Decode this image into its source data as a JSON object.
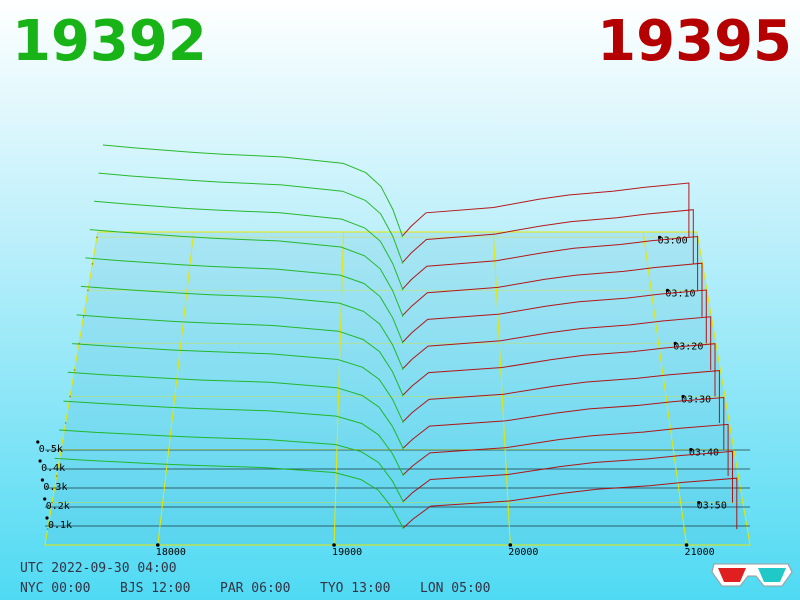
{
  "chart_data": {
    "type": "depth3d",
    "best_bid": 19392,
    "best_ask": 19395,
    "bid_color": "#17b317",
    "ask_color": "#b40000",
    "xlim": [
      17360,
      21360
    ],
    "xticks": [
      18000,
      19000,
      20000,
      21000
    ],
    "zlim": [
      0,
      1000
    ],
    "zticks": [
      {
        "value": 100,
        "label": "0.1k"
      },
      {
        "value": 200,
        "label": "0.2k"
      },
      {
        "value": 300,
        "label": "0.3k"
      },
      {
        "value": 400,
        "label": "0.4k"
      },
      {
        "value": 500,
        "label": "0.5k"
      }
    ],
    "tlim": [
      -1,
      58
    ],
    "tticks": [
      {
        "value": 0,
        "label": "03:00"
      },
      {
        "value": 10,
        "label": "03:10"
      },
      {
        "value": 20,
        "label": "03:20"
      },
      {
        "value": 30,
        "label": "03:30"
      },
      {
        "value": 40,
        "label": "03:40"
      },
      {
        "value": 50,
        "label": "03:50"
      }
    ],
    "bid_prices": [
      17400,
      17600,
      18000,
      18200,
      18600,
      19000,
      19150,
      19250,
      19330,
      19392
    ],
    "ask_prices": [
      19395,
      19450,
      19550,
      20000,
      20300,
      20500,
      20800,
      21000,
      21300
    ],
    "slices": [
      {
        "time": 0,
        "bids": [
          570,
          553,
          524,
          513,
          496,
          456,
          399,
          314,
          171,
          11
        ],
        "asks": [
          10,
          67,
          151,
          184,
          235,
          261,
          285,
          308,
          335
        ]
      },
      {
        "time": 5,
        "bids": [
          552,
          535,
          508,
          497,
          480,
          442,
          386,
          304,
          166,
          11
        ],
        "asks": [
          10,
          66,
          148,
          181,
          230,
          257,
          280,
          303,
          329
        ]
      },
      {
        "time": 10,
        "bids": [
          534,
          518,
          491,
          481,
          465,
          427,
          374,
          294,
          160,
          11
        ],
        "asks": [
          10,
          65,
          145,
          178,
          226,
          252,
          275,
          297,
          323
        ]
      },
      {
        "time": 15,
        "bids": [
          516,
          501,
          475,
          464,
          449,
          413,
          361,
          284,
          155,
          10
        ],
        "asks": [
          10,
          63,
          143,
          174,
          222,
          247,
          269,
          292,
          317
        ]
      },
      {
        "time": 20,
        "bids": [
          498,
          483,
          458,
          448,
          433,
          398,
          349,
          274,
          149,
          10
        ],
        "asks": [
          9,
          62,
          140,
          171,
          218,
          243,
          264,
          286,
          311
        ]
      },
      {
        "time": 25,
        "bids": [
          480,
          466,
          442,
          432,
          418,
          384,
          336,
          264,
          144,
          10
        ],
        "asks": [
          9,
          61,
          137,
          168,
          214,
          238,
          259,
          281,
          305
        ]
      },
      {
        "time": 30,
        "bids": [
          462,
          448,
          425,
          416,
          402,
          370,
          323,
          254,
          139,
          9
        ],
        "asks": [
          9,
          60,
          135,
          164,
          209,
          233,
          254,
          275,
          299
        ]
      },
      {
        "time": 35,
        "bids": [
          444,
          431,
          408,
          400,
          386,
          355,
          311,
          244,
          133,
          9
        ],
        "asks": [
          9,
          59,
          132,
          161,
          205,
          229,
          249,
          270,
          293
        ]
      },
      {
        "time": 40,
        "bids": [
          426,
          413,
          392,
          383,
          371,
          341,
          298,
          234,
          128,
          9
        ],
        "asks": [
          9,
          57,
          129,
          158,
          201,
          224,
          244,
          264,
          287
        ]
      },
      {
        "time": 45,
        "bids": [
          408,
          396,
          375,
          367,
          355,
          326,
          286,
          224,
          122,
          8
        ],
        "asks": [
          8,
          56,
          126,
          155,
          197,
          219,
          239,
          259,
          281
        ]
      },
      {
        "time": 50,
        "bids": [
          390,
          378,
          359,
          351,
          339,
          312,
          273,
          215,
          117,
          8
        ],
        "asks": [
          8,
          55,
          124,
          151,
          193,
          215,
          234,
          253,
          275
        ]
      },
      {
        "time": 55,
        "bids": [
          375,
          364,
          345,
          338,
          326,
          300,
          263,
          206,
          113,
          8
        ],
        "asks": [
          8,
          54,
          122,
          149,
          189,
          211,
          230,
          248,
          270
        ]
      }
    ],
    "footer": {
      "utc": "UTC 2022-09-30 04:00",
      "clocks": [
        "NYC 00:00",
        "BJS 12:00",
        "PAR 06:00",
        "TYO 13:00",
        "LON 05:00"
      ]
    }
  }
}
